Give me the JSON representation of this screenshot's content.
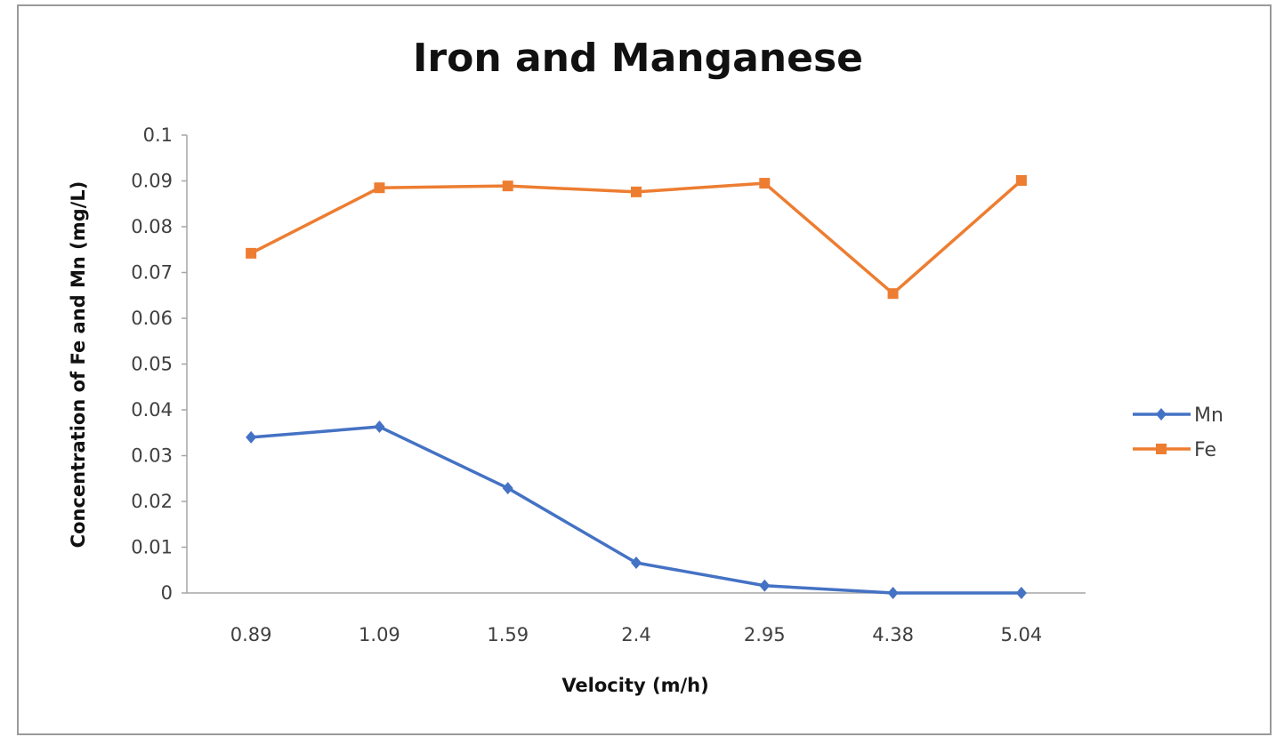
{
  "chart_data": {
    "type": "line",
    "title": "Iron and Manganese",
    "xlabel": "Velocity (m/h)",
    "ylabel": "Concentration of Fe and Mn (mg/L)",
    "categories": [
      "0.89",
      "1.09",
      "1.59",
      "2.4",
      "2.95",
      "4.38",
      "5.04"
    ],
    "ylim": [
      0,
      0.1
    ],
    "yticks": [
      "0",
      "0.01",
      "0.02",
      "0.03",
      "0.04",
      "0.05",
      "0.06",
      "0.07",
      "0.08",
      "0.09",
      "0.1"
    ],
    "ytick_values": [
      0,
      0.01,
      0.02,
      0.03,
      0.04,
      0.05,
      0.06,
      0.07,
      0.08,
      0.09,
      0.1
    ],
    "grid": false,
    "legend_position": "right",
    "series": [
      {
        "name": "Mn",
        "color": "#4472C4",
        "marker": "diamond",
        "values": [
          0.034,
          0.0363,
          0.0229,
          0.0066,
          0.0016,
          0.0,
          0.0
        ]
      },
      {
        "name": "Fe",
        "color": "#ED7D31",
        "marker": "square",
        "values": [
          0.0742,
          0.0885,
          0.0889,
          0.0876,
          0.0895,
          0.0654,
          0.0901
        ]
      }
    ]
  }
}
